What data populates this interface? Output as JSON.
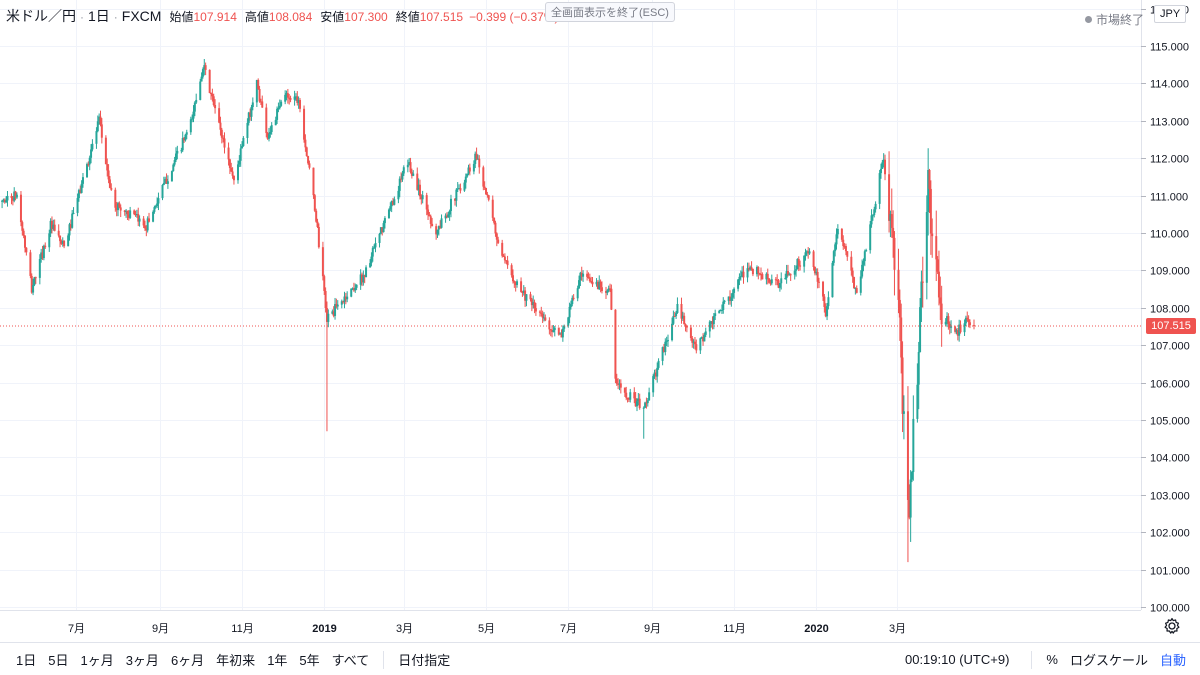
{
  "legend": {
    "symbol": "米ドル／円",
    "interval": "1日",
    "source": "FXCM",
    "open_label": "始値",
    "open_value": "107.914",
    "high_label": "高値",
    "high_value": "108.084",
    "low_label": "安値",
    "low_value": "107.300",
    "close_label": "終値",
    "close_value": "107.515",
    "change": "−0.399 (−0.37%)"
  },
  "esc_hint": "全画面表示を終了(ESC)",
  "market_status": "市場終了",
  "currency_button": "JPY",
  "last_price_label": "107.515",
  "colors": {
    "up": "#26a69a",
    "down": "#ef5350",
    "grid": "#f0f3fa",
    "axis_text": "#131722",
    "price_line": "#ef5350",
    "accent": "#2962ff"
  },
  "bottom_bar": {
    "ranges": [
      "1日",
      "5日",
      "1ヶ月",
      "3ヶ月",
      "6ヶ月",
      "年初来",
      "1年",
      "5年",
      "すべて"
    ],
    "goto_date": "日付指定",
    "clock": "00:19:10 (UTC+9)",
    "percent": "%",
    "log_scale": "ログスケール",
    "auto": "自動"
  },
  "icons": {
    "settings": "gear-icon",
    "status_dot": "dot-icon"
  },
  "chart_data": {
    "type": "candlestick",
    "y_ticks": [
      "100.000",
      "101.000",
      "102.000",
      "103.000",
      "104.000",
      "105.000",
      "106.000",
      "107.000",
      "108.000",
      "109.000",
      "110.000",
      "111.000",
      "112.000",
      "113.000",
      "114.000",
      "115.000",
      "116.000"
    ],
    "ylim": [
      100,
      116.4
    ],
    "x_ticks": [
      "7月",
      "9月",
      "11月",
      "2019",
      "3月",
      "5月",
      "7月",
      "9月",
      "11月",
      "2020",
      "3月"
    ],
    "x_tick_dates": [
      "2018-07-01",
      "2018-09-01",
      "2018-11-01",
      "2019-01-01",
      "2019-03-01",
      "2019-05-01",
      "2019-07-01",
      "2019-09-01",
      "2019-11-01",
      "2020-01-01",
      "2020-03-01"
    ],
    "last_price": 107.515,
    "keypoints": [
      [
        "2018-05-01",
        110.8
      ],
      [
        "2018-05-18",
        111.0
      ],
      [
        "2018-05-29",
        108.5
      ],
      [
        "2018-06-12",
        110.2
      ],
      [
        "2018-06-22",
        109.6
      ],
      [
        "2018-07-18",
        113.0
      ],
      [
        "2018-07-28",
        110.8
      ],
      [
        "2018-08-22",
        110.2
      ],
      [
        "2018-09-24",
        112.9
      ],
      [
        "2018-10-03",
        114.5
      ],
      [
        "2018-10-26",
        111.4
      ],
      [
        "2018-11-12",
        114.0
      ],
      [
        "2018-11-20",
        112.6
      ],
      [
        "2018-12-03",
        113.7
      ],
      [
        "2018-12-13",
        113.6
      ],
      [
        "2018-12-26",
        110.4
      ],
      [
        "2019-01-03",
        107.7
      ],
      [
        "2019-01-31",
        108.9
      ],
      [
        "2019-03-04",
        111.9
      ],
      [
        "2019-03-25",
        110.0
      ],
      [
        "2019-04-24",
        112.1
      ],
      [
        "2019-05-13",
        109.3
      ],
      [
        "2019-06-03",
        108.1
      ],
      [
        "2019-06-25",
        107.2
      ],
      [
        "2019-07-10",
        108.8
      ],
      [
        "2019-08-01",
        108.5
      ],
      [
        "2019-08-05",
        106.0
      ],
      [
        "2019-08-26",
        105.3
      ],
      [
        "2019-09-20",
        108.0
      ],
      [
        "2019-10-03",
        106.9
      ],
      [
        "2019-11-12",
        109.1
      ],
      [
        "2019-12-03",
        108.6
      ],
      [
        "2019-12-27",
        109.5
      ],
      [
        "2020-01-08",
        107.9
      ],
      [
        "2020-01-17",
        110.2
      ],
      [
        "2020-01-31",
        108.4
      ],
      [
        "2020-02-20",
        112.0
      ],
      [
        "2020-03-02",
        108.0
      ],
      [
        "2020-03-09",
        102.3
      ],
      [
        "2020-03-24",
        111.2
      ],
      [
        "2020-04-02",
        107.9
      ],
      [
        "2020-04-14",
        107.3
      ],
      [
        "2020-04-22",
        107.8
      ],
      [
        "2020-04-27",
        107.5
      ]
    ],
    "notable_wicks": [
      {
        "date": "2019-01-03",
        "low": 104.7
      },
      {
        "date": "2020-03-09",
        "low": 101.2
      },
      {
        "date": "2019-08-26",
        "low": 104.5
      }
    ]
  }
}
